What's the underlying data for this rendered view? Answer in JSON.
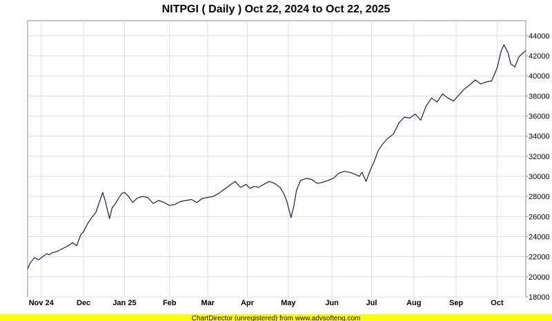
{
  "chart_data": {
    "type": "line",
    "title": "NITPGI ( Daily ) Oct 22, 2024 to Oct 22, 2025",
    "xlabel": "",
    "ylabel": "",
    "x_range": [
      "2024-10-22",
      "2025-10-22"
    ],
    "ylim": [
      18000,
      45500
    ],
    "y_ticks": [
      18000,
      20000,
      22000,
      24000,
      26000,
      28000,
      30000,
      32000,
      34000,
      36000,
      38000,
      40000,
      42000,
      44000
    ],
    "x_ticks": [
      {
        "label": "Nov 24",
        "date": "2024-11-01"
      },
      {
        "label": "Dec",
        "date": "2024-12-02"
      },
      {
        "label": "Jan 25",
        "date": "2025-01-01"
      },
      {
        "label": "Feb",
        "date": "2025-02-03"
      },
      {
        "label": "Mar",
        "date": "2025-03-03"
      },
      {
        "label": "Apr",
        "date": "2025-04-01"
      },
      {
        "label": "May",
        "date": "2025-05-01"
      },
      {
        "label": "Jun",
        "date": "2025-06-02"
      },
      {
        "label": "Jul",
        "date": "2025-07-01"
      },
      {
        "label": "Aug",
        "date": "2025-08-01"
      },
      {
        "label": "Sep",
        "date": "2025-09-01"
      },
      {
        "label": "Oct",
        "date": "2025-10-01"
      }
    ],
    "grid": true,
    "y_axis_side": "right",
    "line_color": "#1a1a4d",
    "series": [
      {
        "x": [
          "2024-10-22",
          "2024-10-24",
          "2024-10-27",
          "2024-10-30",
          "2024-11-02",
          "2024-11-05",
          "2024-11-07",
          "2024-11-09",
          "2024-11-12",
          "2024-11-15",
          "2024-11-18",
          "2024-11-21",
          "2024-11-24",
          "2024-11-27",
          "2024-11-30",
          "2024-12-02",
          "2024-12-05",
          "2024-12-08",
          "2024-12-11",
          "2024-12-14",
          "2024-12-16",
          "2024-12-18",
          "2024-12-21",
          "2024-12-23",
          "2024-12-25",
          "2024-12-27",
          "2024-12-30",
          "2025-01-01",
          "2025-01-04",
          "2025-01-07",
          "2025-01-10",
          "2025-01-14",
          "2025-01-18",
          "2025-01-22",
          "2025-01-26",
          "2025-01-30",
          "2025-02-03",
          "2025-02-07",
          "2025-02-11",
          "2025-02-15",
          "2025-02-19",
          "2025-02-23",
          "2025-02-27",
          "2025-03-03",
          "2025-03-07",
          "2025-03-11",
          "2025-03-15",
          "2025-03-19",
          "2025-03-23",
          "2025-03-27",
          "2025-03-31",
          "2025-04-03",
          "2025-04-06",
          "2025-04-09",
          "2025-04-13",
          "2025-04-17",
          "2025-04-21",
          "2025-04-25",
          "2025-04-28",
          "2025-04-30",
          "2025-05-03",
          "2025-05-05",
          "2025-05-07",
          "2025-05-10",
          "2025-05-14",
          "2025-05-18",
          "2025-05-22",
          "2025-05-26",
          "2025-05-30",
          "2025-06-03",
          "2025-06-07",
          "2025-06-11",
          "2025-06-15",
          "2025-06-19",
          "2025-06-22",
          "2025-06-24",
          "2025-06-27",
          "2025-06-30",
          "2025-07-03",
          "2025-07-06",
          "2025-07-09",
          "2025-07-13",
          "2025-07-17",
          "2025-07-21",
          "2025-07-25",
          "2025-07-29",
          "2025-08-02",
          "2025-08-06",
          "2025-08-10",
          "2025-08-14",
          "2025-08-18",
          "2025-08-22",
          "2025-08-26",
          "2025-08-30",
          "2025-09-03",
          "2025-09-07",
          "2025-09-11",
          "2025-09-15",
          "2025-09-19",
          "2025-09-23",
          "2025-09-27",
          "2025-10-01",
          "2025-10-04",
          "2025-10-06",
          "2025-10-09",
          "2025-10-11",
          "2025-10-14",
          "2025-10-17",
          "2025-10-20",
          "2025-10-22"
        ],
        "values": [
          20800,
          21400,
          21900,
          21700,
          22000,
          22300,
          22200,
          22400,
          22500,
          22700,
          22900,
          23100,
          23400,
          23100,
          24200,
          24500,
          25300,
          25900,
          26400,
          27600,
          28400,
          27500,
          25800,
          26900,
          27200,
          27700,
          28300,
          28400,
          28000,
          27400,
          27800,
          28000,
          27900,
          27300,
          27600,
          27400,
          27100,
          27200,
          27500,
          27600,
          27700,
          27400,
          27800,
          27900,
          28000,
          28300,
          28700,
          29100,
          29500,
          28900,
          29200,
          28800,
          29000,
          28900,
          29200,
          29500,
          29300,
          28900,
          28200,
          27500,
          25900,
          27000,
          28600,
          29600,
          29800,
          29700,
          29300,
          29400,
          29600,
          29800,
          30300,
          30500,
          30400,
          30200,
          30000,
          30400,
          29500,
          30600,
          31500,
          32600,
          33200,
          33800,
          34200,
          35300,
          35900,
          35800,
          36200,
          35600,
          37000,
          37800,
          37400,
          38200,
          37800,
          37500,
          38100,
          38700,
          39100,
          39600,
          39200,
          39400,
          39500,
          40800,
          42500,
          43100,
          42300,
          41200,
          40900,
          41900,
          42300,
          42500
        ]
      }
    ]
  },
  "footer": {
    "text": "ChartDirector (unregistered) from www.advsofteng.com"
  }
}
